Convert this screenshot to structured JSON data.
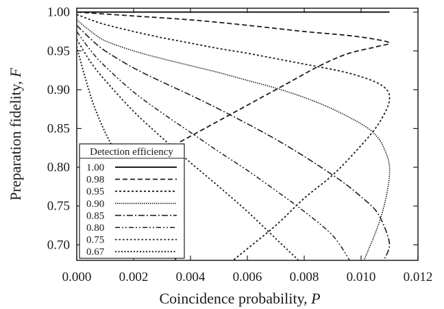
{
  "chart_data": {
    "type": "line",
    "title": "",
    "xlabel": "Coincidence probability, ",
    "xlabel_var": "P",
    "ylabel": "Preparation fidelity, ",
    "ylabel_var": "F",
    "xlim": [
      0.0,
      0.012
    ],
    "ylim": [
      0.68,
      1.005
    ],
    "x_ticks": [
      "0.000",
      "0.002",
      "0.004",
      "0.006",
      "0.008",
      "0.010",
      "0.012"
    ],
    "y_ticks": [
      "0.70",
      "0.75",
      "0.80",
      "0.85",
      "0.90",
      "0.95",
      "1.00"
    ],
    "grid": false,
    "legend": {
      "title": "Detection efficiency",
      "placement": "bottom-left"
    },
    "series": [
      {
        "name": "1.00",
        "style": "solid",
        "x": [
          0.0,
          0.011
        ],
        "y": [
          1.0,
          1.0
        ]
      },
      {
        "name": "0.98",
        "style": "dashed",
        "x": [
          0.0,
          0.002,
          0.004,
          0.006,
          0.008,
          0.0095,
          0.0105,
          0.011,
          0.0105,
          0.0095,
          0.0085,
          0.0075,
          0.0065,
          0.0055,
          0.0045,
          0.0036
        ],
        "y": [
          1.0,
          0.995,
          0.99,
          0.983,
          0.975,
          0.97,
          0.965,
          0.96,
          0.955,
          0.946,
          0.93,
          0.91,
          0.89,
          0.87,
          0.85,
          0.832
        ]
      },
      {
        "name": "0.95",
        "style": "dotted-coarse",
        "x": [
          0.0,
          0.0005,
          0.001,
          0.002,
          0.003,
          0.004,
          0.005,
          0.006,
          0.007,
          0.008,
          0.0095,
          0.0105,
          0.0109,
          0.011,
          0.0109,
          0.0105,
          0.0098,
          0.009,
          0.008,
          0.007,
          0.006,
          0.0055
        ],
        "y": [
          0.997,
          0.99,
          0.984,
          0.975,
          0.967,
          0.96,
          0.953,
          0.947,
          0.94,
          0.933,
          0.922,
          0.91,
          0.9,
          0.89,
          0.875,
          0.85,
          0.82,
          0.79,
          0.76,
          0.725,
          0.695,
          0.68
        ]
      },
      {
        "name": "0.90",
        "style": "dotted-fine",
        "x": [
          0.0,
          0.0005,
          0.001,
          0.002,
          0.003,
          0.004,
          0.005,
          0.006,
          0.007,
          0.008,
          0.009,
          0.01,
          0.0105,
          0.0108,
          0.011,
          0.0109,
          0.0106,
          0.0101
        ],
        "y": [
          0.99,
          0.975,
          0.963,
          0.95,
          0.94,
          0.931,
          0.922,
          0.912,
          0.902,
          0.89,
          0.875,
          0.856,
          0.842,
          0.825,
          0.8,
          0.765,
          0.725,
          0.68
        ]
      },
      {
        "name": "0.85",
        "style": "dash-dot",
        "x": [
          0.0,
          0.0005,
          0.001,
          0.002,
          0.003,
          0.004,
          0.005,
          0.006,
          0.007,
          0.008,
          0.009,
          0.0095,
          0.01,
          0.0105,
          0.0108,
          0.011,
          0.0108
        ],
        "y": [
          0.983,
          0.965,
          0.95,
          0.928,
          0.91,
          0.893,
          0.875,
          0.856,
          0.836,
          0.814,
          0.79,
          0.777,
          0.762,
          0.745,
          0.725,
          0.7,
          0.68
        ]
      },
      {
        "name": "0.80",
        "style": "dash-dot-dot",
        "x": [
          0.0,
          0.0005,
          0.001,
          0.002,
          0.003,
          0.004,
          0.005,
          0.006,
          0.007,
          0.008,
          0.009,
          0.0096
        ],
        "y": [
          0.975,
          0.95,
          0.93,
          0.897,
          0.87,
          0.845,
          0.82,
          0.796,
          0.77,
          0.743,
          0.712,
          0.68
        ]
      },
      {
        "name": "0.75",
        "style": "dotted-medium",
        "x": [
          0.0,
          0.0005,
          0.001,
          0.002,
          0.003,
          0.004,
          0.005,
          0.006,
          0.007,
          0.0078
        ],
        "y": [
          0.965,
          0.935,
          0.912,
          0.872,
          0.838,
          0.806,
          0.775,
          0.743,
          0.708,
          0.68
        ]
      },
      {
        "name": "0.67",
        "style": "dotted-dense",
        "x": [
          0.0,
          0.0003,
          0.0006,
          0.001,
          0.0015,
          0.002,
          0.0025,
          0.003,
          0.0035
        ],
        "y": [
          0.955,
          0.915,
          0.88,
          0.845,
          0.81,
          0.778,
          0.745,
          0.712,
          0.68
        ]
      }
    ]
  }
}
